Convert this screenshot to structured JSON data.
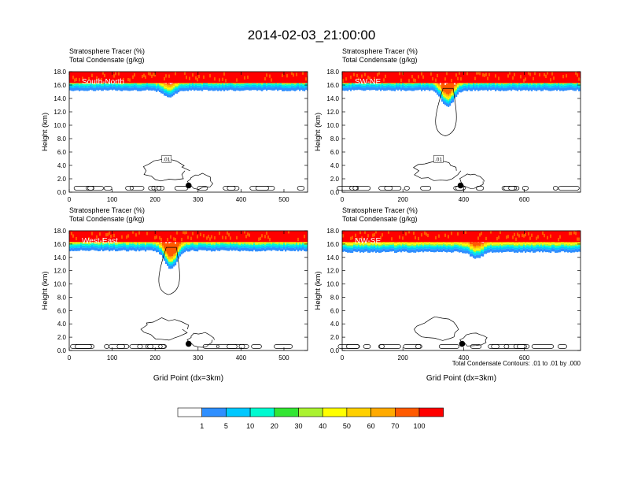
{
  "figure": {
    "title": "2014-02-03_21:00:00",
    "contour_note": "Total Condensate Contours: .01 to .01 by .000",
    "colorbar": {
      "colors": [
        "#ffffff",
        "#2f8fff",
        "#00c8ff",
        "#00fad0",
        "#33e633",
        "#aaf230",
        "#ffff00",
        "#ffd000",
        "#ffaa00",
        "#ff5a00",
        "#ff0000"
      ],
      "labels": [
        "1",
        "5",
        "10",
        "20",
        "30",
        "40",
        "50",
        "60",
        "70",
        "100"
      ]
    }
  },
  "chart_data": [
    {
      "type": "heatmap",
      "panel": "South-North",
      "title_line1": "Stratosphere Tracer   (%)",
      "title_line2": "Total Condensate   (g/kg)",
      "ylabel": "Height (km)",
      "xlabel": "",
      "xlim": [
        0,
        555
      ],
      "ylim": [
        0,
        18
      ],
      "xticks": [
        "0",
        "100",
        "200",
        "300",
        "400",
        "500"
      ],
      "yticks": [
        "0.0",
        "2.0",
        "4.0",
        "6.0",
        "8.0",
        "10.0",
        "12.0",
        "14.0",
        "16.0",
        "18.0"
      ],
      "tracer_band_base_km": 15.2,
      "dip": {
        "x": 230,
        "depth_km": 1.0
      },
      "contour_label": ".01",
      "marker": {
        "x": 278,
        "height_km": 1.0
      }
    },
    {
      "type": "heatmap",
      "panel": "SW-NE",
      "title_line1": "Stratosphere Tracer   (%)",
      "title_line2": "Total Condensate   (g/kg)",
      "ylabel": "Height (km)",
      "xlabel": "",
      "xlim": [
        0,
        785
      ],
      "ylim": [
        0,
        18
      ],
      "xticks": [
        "0",
        "200",
        "400",
        "600"
      ],
      "yticks": [
        "0.0",
        "2.0",
        "4.0",
        "6.0",
        "8.0",
        "10.0",
        "12.0",
        "14.0",
        "16.0",
        "18.0"
      ],
      "tracer_band_base_km": 15.2,
      "dip": {
        "x": 345,
        "depth_km": 2.5
      },
      "contour_label": ".01",
      "marker": {
        "x": 390,
        "height_km": 1.0
      }
    },
    {
      "type": "heatmap",
      "panel": "West-East",
      "title_line1": "Stratosphere Tracer   (%)",
      "title_line2": "Total Condensate   (g/kg)",
      "ylabel": "Height (km)",
      "xlabel": "Grid Point (dx=3km)",
      "xlim": [
        0,
        555
      ],
      "ylim": [
        0,
        18
      ],
      "xticks": [
        "0",
        "100",
        "200",
        "300",
        "400",
        "500"
      ],
      "yticks": [
        "0.0",
        "2.0",
        "4.0",
        "6.0",
        "8.0",
        "10.0",
        "12.0",
        "14.0",
        "16.0",
        "18.0"
      ],
      "tracer_band_base_km": 15.0,
      "dip": {
        "x": 235,
        "depth_km": 2.8
      },
      "contour_label": "",
      "marker": {
        "x": 278,
        "height_km": 1.0
      }
    },
    {
      "type": "heatmap",
      "panel": "NW-SE",
      "title_line1": "Stratosphere Tracer   (%)",
      "title_line2": "Total Condensate   (g/kg)",
      "ylabel": "Height (km)",
      "xlabel": "Grid Point (dx=3km)",
      "xlim": [
        0,
        785
      ],
      "ylim": [
        0,
        18
      ],
      "xticks": [
        "0",
        "200",
        "400",
        "600"
      ],
      "yticks": [
        "0.0",
        "2.0",
        "4.0",
        "6.0",
        "8.0",
        "10.0",
        "12.0",
        "14.0",
        "16.0",
        "18.0"
      ],
      "tracer_band_base_km": 14.8,
      "dip": {
        "x": 440,
        "depth_km": 1.0
      },
      "contour_label": "",
      "marker": {
        "x": 395,
        "height_km": 1.0
      }
    }
  ]
}
